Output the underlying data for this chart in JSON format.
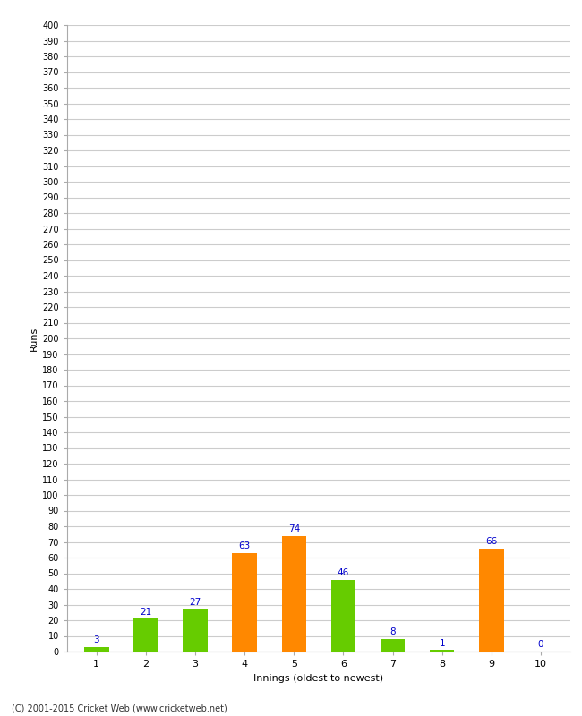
{
  "innings": [
    1,
    2,
    3,
    4,
    5,
    6,
    7,
    8,
    9,
    10
  ],
  "values": [
    3,
    21,
    27,
    63,
    74,
    46,
    8,
    1,
    66,
    0
  ],
  "colors": [
    "#66cc00",
    "#66cc00",
    "#66cc00",
    "#ff8800",
    "#ff8800",
    "#66cc00",
    "#66cc00",
    "#66cc00",
    "#ff8800",
    "#66cc00"
  ],
  "xlabel": "Innings (oldest to newest)",
  "ylabel": "Runs",
  "ylim": [
    0,
    400
  ],
  "ytick_step": 10,
  "background_color": "#ffffff",
  "grid_color": "#cccccc",
  "label_color": "#0000cc",
  "label_fontsize": 7.5,
  "tick_fontsize": 7,
  "axis_label_fontsize": 8,
  "bar_width": 0.5,
  "footer": "(C) 2001-2015 Cricket Web (www.cricketweb.net)"
}
